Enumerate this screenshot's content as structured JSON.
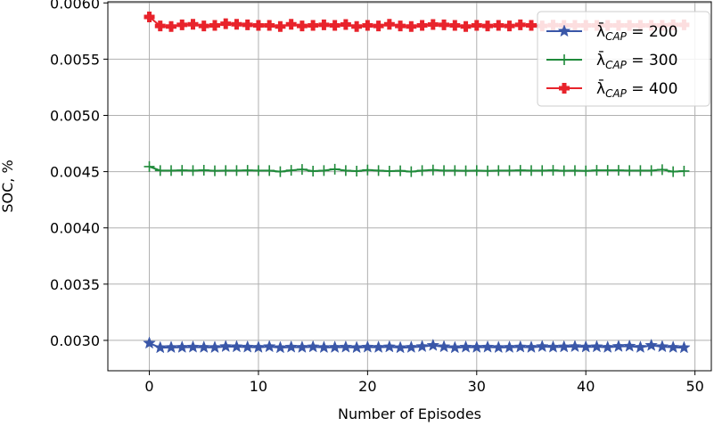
{
  "chart_data": {
    "type": "line",
    "title": "",
    "xlabel": "Number of Episodes",
    "ylabel": "SOC, %",
    "xlim": [
      -3.8,
      51.5
    ],
    "ylim": [
      0.00273,
      0.00601
    ],
    "grid": true,
    "legend_placement": "top-right",
    "x_ticks": [
      0,
      10,
      20,
      30,
      40,
      50
    ],
    "x_tick_labels": [
      "0",
      "10",
      "20",
      "30",
      "40",
      "50"
    ],
    "y_ticks": [
      0.003,
      0.0035,
      0.004,
      0.0045,
      0.005,
      0.0055,
      0.006
    ],
    "y_tick_labels": [
      "0.0030",
      "0.0035",
      "0.0040",
      "0.0045",
      "0.0050",
      "0.0055",
      "0.0060"
    ],
    "x": [
      0,
      1,
      2,
      3,
      4,
      5,
      6,
      7,
      8,
      9,
      10,
      11,
      12,
      13,
      14,
      15,
      16,
      17,
      18,
      19,
      20,
      21,
      22,
      23,
      24,
      25,
      26,
      27,
      28,
      29,
      30,
      31,
      32,
      33,
      34,
      35,
      36,
      37,
      38,
      39,
      40,
      41,
      42,
      43,
      44,
      45,
      46,
      47,
      48,
      49
    ],
    "series": [
      {
        "name": "λ̄_CAP = 200",
        "legend_main": "λ̄",
        "legend_sub": "CAP",
        "legend_rest": " = 200",
        "color": "#3a57a8",
        "marker": "star",
        "values": [
          0.002975,
          0.002935,
          0.002937,
          0.002938,
          0.00294,
          0.002938,
          0.002937,
          0.002945,
          0.002943,
          0.00294,
          0.002938,
          0.002944,
          0.002935,
          0.00294,
          0.002938,
          0.002942,
          0.002937,
          0.002938,
          0.00294,
          0.002936,
          0.00294,
          0.002938,
          0.002942,
          0.002935,
          0.002938,
          0.002945,
          0.002955,
          0.002943,
          0.002935,
          0.00294,
          0.002938,
          0.00294,
          0.002937,
          0.002938,
          0.002941,
          0.002938,
          0.002945,
          0.00294,
          0.002942,
          0.002945,
          0.002941,
          0.002943,
          0.002938,
          0.002946,
          0.002948,
          0.002938,
          0.002955,
          0.002944,
          0.002938,
          0.002935
        ]
      },
      {
        "name": "λ̄_CAP = 300",
        "legend_main": "λ̄",
        "legend_sub": "CAP",
        "legend_rest": " = 300",
        "color": "#1f8a3a",
        "marker": "plus",
        "values": [
          0.004545,
          0.00451,
          0.00451,
          0.004512,
          0.00451,
          0.004513,
          0.004508,
          0.00451,
          0.00451,
          0.004512,
          0.00451,
          0.00451,
          0.0045,
          0.004512,
          0.00452,
          0.004505,
          0.00451,
          0.004522,
          0.00451,
          0.004505,
          0.004515,
          0.00451,
          0.004505,
          0.004508,
          0.0045,
          0.00451,
          0.004515,
          0.00451,
          0.00451,
          0.004508,
          0.00451,
          0.004507,
          0.00451,
          0.00451,
          0.004512,
          0.00451,
          0.00451,
          0.004512,
          0.004508,
          0.00451,
          0.004507,
          0.004512,
          0.004512,
          0.004512,
          0.00451,
          0.00451,
          0.00451,
          0.004518,
          0.0045,
          0.004505
        ]
      },
      {
        "name": "λ̄_CAP = 400",
        "legend_main": "λ̄",
        "legend_sub": "CAP",
        "legend_rest": " = 400",
        "color": "#e8232b",
        "marker": "cross",
        "values": [
          0.005875,
          0.005795,
          0.00579,
          0.005805,
          0.00581,
          0.005795,
          0.0058,
          0.005815,
          0.00581,
          0.005805,
          0.0058,
          0.0058,
          0.00579,
          0.00581,
          0.005795,
          0.0058,
          0.005805,
          0.0058,
          0.005808,
          0.00579,
          0.0058,
          0.005795,
          0.00581,
          0.005795,
          0.00579,
          0.0058,
          0.005808,
          0.005805,
          0.0058,
          0.00579,
          0.0058,
          0.005795,
          0.0058,
          0.005795,
          0.005805,
          0.0058,
          0.005795,
          0.005802,
          0.0058,
          0.0058,
          0.0058,
          0.0058,
          0.0058,
          0.0058,
          0.0058,
          0.0058,
          0.0058,
          0.0058,
          0.005805,
          0.005805
        ]
      }
    ]
  }
}
